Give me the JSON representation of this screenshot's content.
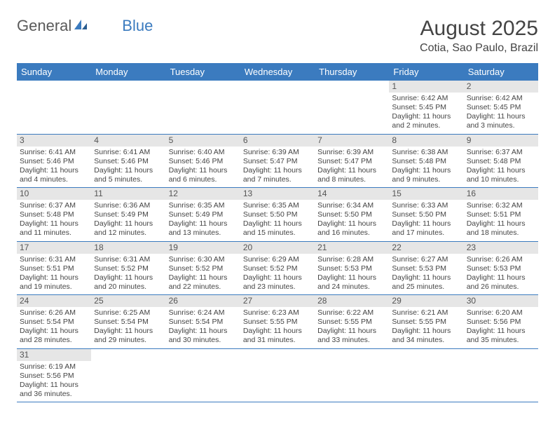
{
  "logo": {
    "general": "General",
    "blue": "Blue"
  },
  "title": "August 2025",
  "location": "Cotia, Sao Paulo, Brazil",
  "colors": {
    "header_bg": "#3b7bbf",
    "header_fg": "#ffffff",
    "daynum_bg": "#e6e6e6",
    "text": "#444444",
    "page_bg": "#ffffff"
  },
  "day_labels": [
    "Sunday",
    "Monday",
    "Tuesday",
    "Wednesday",
    "Thursday",
    "Friday",
    "Saturday"
  ],
  "weeks": [
    [
      null,
      null,
      null,
      null,
      null,
      {
        "n": "1",
        "sr": "6:42 AM",
        "ss": "5:45 PM",
        "dl": "11 hours and 2 minutes."
      },
      {
        "n": "2",
        "sr": "6:42 AM",
        "ss": "5:45 PM",
        "dl": "11 hours and 3 minutes."
      }
    ],
    [
      {
        "n": "3",
        "sr": "6:41 AM",
        "ss": "5:46 PM",
        "dl": "11 hours and 4 minutes."
      },
      {
        "n": "4",
        "sr": "6:41 AM",
        "ss": "5:46 PM",
        "dl": "11 hours and 5 minutes."
      },
      {
        "n": "5",
        "sr": "6:40 AM",
        "ss": "5:46 PM",
        "dl": "11 hours and 6 minutes."
      },
      {
        "n": "6",
        "sr": "6:39 AM",
        "ss": "5:47 PM",
        "dl": "11 hours and 7 minutes."
      },
      {
        "n": "7",
        "sr": "6:39 AM",
        "ss": "5:47 PM",
        "dl": "11 hours and 8 minutes."
      },
      {
        "n": "8",
        "sr": "6:38 AM",
        "ss": "5:48 PM",
        "dl": "11 hours and 9 minutes."
      },
      {
        "n": "9",
        "sr": "6:37 AM",
        "ss": "5:48 PM",
        "dl": "11 hours and 10 minutes."
      }
    ],
    [
      {
        "n": "10",
        "sr": "6:37 AM",
        "ss": "5:48 PM",
        "dl": "11 hours and 11 minutes."
      },
      {
        "n": "11",
        "sr": "6:36 AM",
        "ss": "5:49 PM",
        "dl": "11 hours and 12 minutes."
      },
      {
        "n": "12",
        "sr": "6:35 AM",
        "ss": "5:49 PM",
        "dl": "11 hours and 13 minutes."
      },
      {
        "n": "13",
        "sr": "6:35 AM",
        "ss": "5:50 PM",
        "dl": "11 hours and 15 minutes."
      },
      {
        "n": "14",
        "sr": "6:34 AM",
        "ss": "5:50 PM",
        "dl": "11 hours and 16 minutes."
      },
      {
        "n": "15",
        "sr": "6:33 AM",
        "ss": "5:50 PM",
        "dl": "11 hours and 17 minutes."
      },
      {
        "n": "16",
        "sr": "6:32 AM",
        "ss": "5:51 PM",
        "dl": "11 hours and 18 minutes."
      }
    ],
    [
      {
        "n": "17",
        "sr": "6:31 AM",
        "ss": "5:51 PM",
        "dl": "11 hours and 19 minutes."
      },
      {
        "n": "18",
        "sr": "6:31 AM",
        "ss": "5:52 PM",
        "dl": "11 hours and 20 minutes."
      },
      {
        "n": "19",
        "sr": "6:30 AM",
        "ss": "5:52 PM",
        "dl": "11 hours and 22 minutes."
      },
      {
        "n": "20",
        "sr": "6:29 AM",
        "ss": "5:52 PM",
        "dl": "11 hours and 23 minutes."
      },
      {
        "n": "21",
        "sr": "6:28 AM",
        "ss": "5:53 PM",
        "dl": "11 hours and 24 minutes."
      },
      {
        "n": "22",
        "sr": "6:27 AM",
        "ss": "5:53 PM",
        "dl": "11 hours and 25 minutes."
      },
      {
        "n": "23",
        "sr": "6:26 AM",
        "ss": "5:53 PM",
        "dl": "11 hours and 26 minutes."
      }
    ],
    [
      {
        "n": "24",
        "sr": "6:26 AM",
        "ss": "5:54 PM",
        "dl": "11 hours and 28 minutes."
      },
      {
        "n": "25",
        "sr": "6:25 AM",
        "ss": "5:54 PM",
        "dl": "11 hours and 29 minutes."
      },
      {
        "n": "26",
        "sr": "6:24 AM",
        "ss": "5:54 PM",
        "dl": "11 hours and 30 minutes."
      },
      {
        "n": "27",
        "sr": "6:23 AM",
        "ss": "5:55 PM",
        "dl": "11 hours and 31 minutes."
      },
      {
        "n": "28",
        "sr": "6:22 AM",
        "ss": "5:55 PM",
        "dl": "11 hours and 33 minutes."
      },
      {
        "n": "29",
        "sr": "6:21 AM",
        "ss": "5:55 PM",
        "dl": "11 hours and 34 minutes."
      },
      {
        "n": "30",
        "sr": "6:20 AM",
        "ss": "5:56 PM",
        "dl": "11 hours and 35 minutes."
      }
    ],
    [
      {
        "n": "31",
        "sr": "6:19 AM",
        "ss": "5:56 PM",
        "dl": "11 hours and 36 minutes."
      },
      null,
      null,
      null,
      null,
      null,
      null
    ]
  ],
  "labels": {
    "sunrise": "Sunrise:",
    "sunset": "Sunset:",
    "daylight": "Daylight:"
  }
}
